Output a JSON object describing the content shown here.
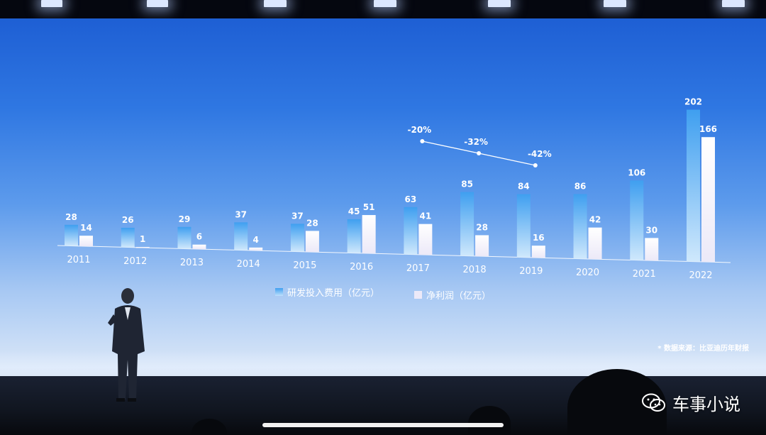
{
  "chart_data": {
    "type": "bar",
    "categories": [
      "2011",
      "2012",
      "2013",
      "2014",
      "2015",
      "2016",
      "2017",
      "2018",
      "2019",
      "2020",
      "2021",
      "2022"
    ],
    "series": [
      {
        "name": "研发投入费用（亿元）",
        "values": [
          28,
          26,
          29,
          37,
          37,
          45,
          63,
          85,
          84,
          86,
          106,
          202
        ]
      },
      {
        "name": "净利润（亿元）",
        "values": [
          14,
          1,
          6,
          4,
          28,
          51,
          41,
          28,
          16,
          42,
          30,
          166
        ]
      }
    ],
    "annotation_trend": {
      "categories": [
        "2017",
        "2018",
        "2019"
      ],
      "labels": [
        "-20%",
        "-32%",
        "-42%"
      ]
    },
    "grid": false,
    "legend_position": "bottom-center",
    "colors": {
      "rd": "#3f9ff0",
      "profit": "#ece9f8"
    }
  },
  "legend": {
    "rd_label": "研发投入费用（亿元）",
    "profit_label": "净利润（亿元）"
  },
  "source_note": "* 数据来源：比亚迪历年财报",
  "watermark": "车事小说"
}
